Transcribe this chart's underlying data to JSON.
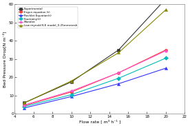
{
  "flow_rate": [
    5,
    10,
    15,
    20
  ],
  "experimental": [
    6.0,
    17.5,
    35.0,
    63.0
  ],
  "ergun": [
    4.5,
    12.0,
    22.5,
    35.0
  ],
  "rechlet": [
    3.2,
    9.5,
    16.5,
    25.0
  ],
  "foumainy": [
    4.0,
    10.5,
    19.5,
    30.5
  ],
  "montilet": [
    4.8,
    12.5,
    22.5,
    34.5
  ],
  "low_reynold": [
    6.0,
    18.0,
    33.5,
    57.0
  ],
  "series_colors": [
    "#333333",
    "#ff3333",
    "#3333ff",
    "#00bbbb",
    "#ff55cc",
    "#888800"
  ],
  "series_labels": [
    "Experimental",
    "Ergun equation (t)",
    "Rechlet Equation(t)",
    "Foumainy(t)",
    "Montilet",
    "Low reynold K-E model_0.25mmmesh"
  ],
  "markers": [
    "s",
    "o",
    "^",
    "D",
    "p",
    "^"
  ],
  "line_styles": [
    "-",
    "-",
    "-",
    "-",
    "-",
    "-"
  ],
  "xlim": [
    4,
    22
  ],
  "ylim": [
    0,
    60
  ],
  "xticks": [
    4,
    6,
    8,
    10,
    12,
    14,
    16,
    18,
    20,
    22
  ],
  "yticks": [
    0,
    10,
    20,
    30,
    40,
    50,
    60
  ],
  "xlabel": "Flow rate [ m³ h⁻¹ ]",
  "ylabel": "Bed Pressure Drop[N m⁻²]",
  "bg_color": "#ffffff"
}
